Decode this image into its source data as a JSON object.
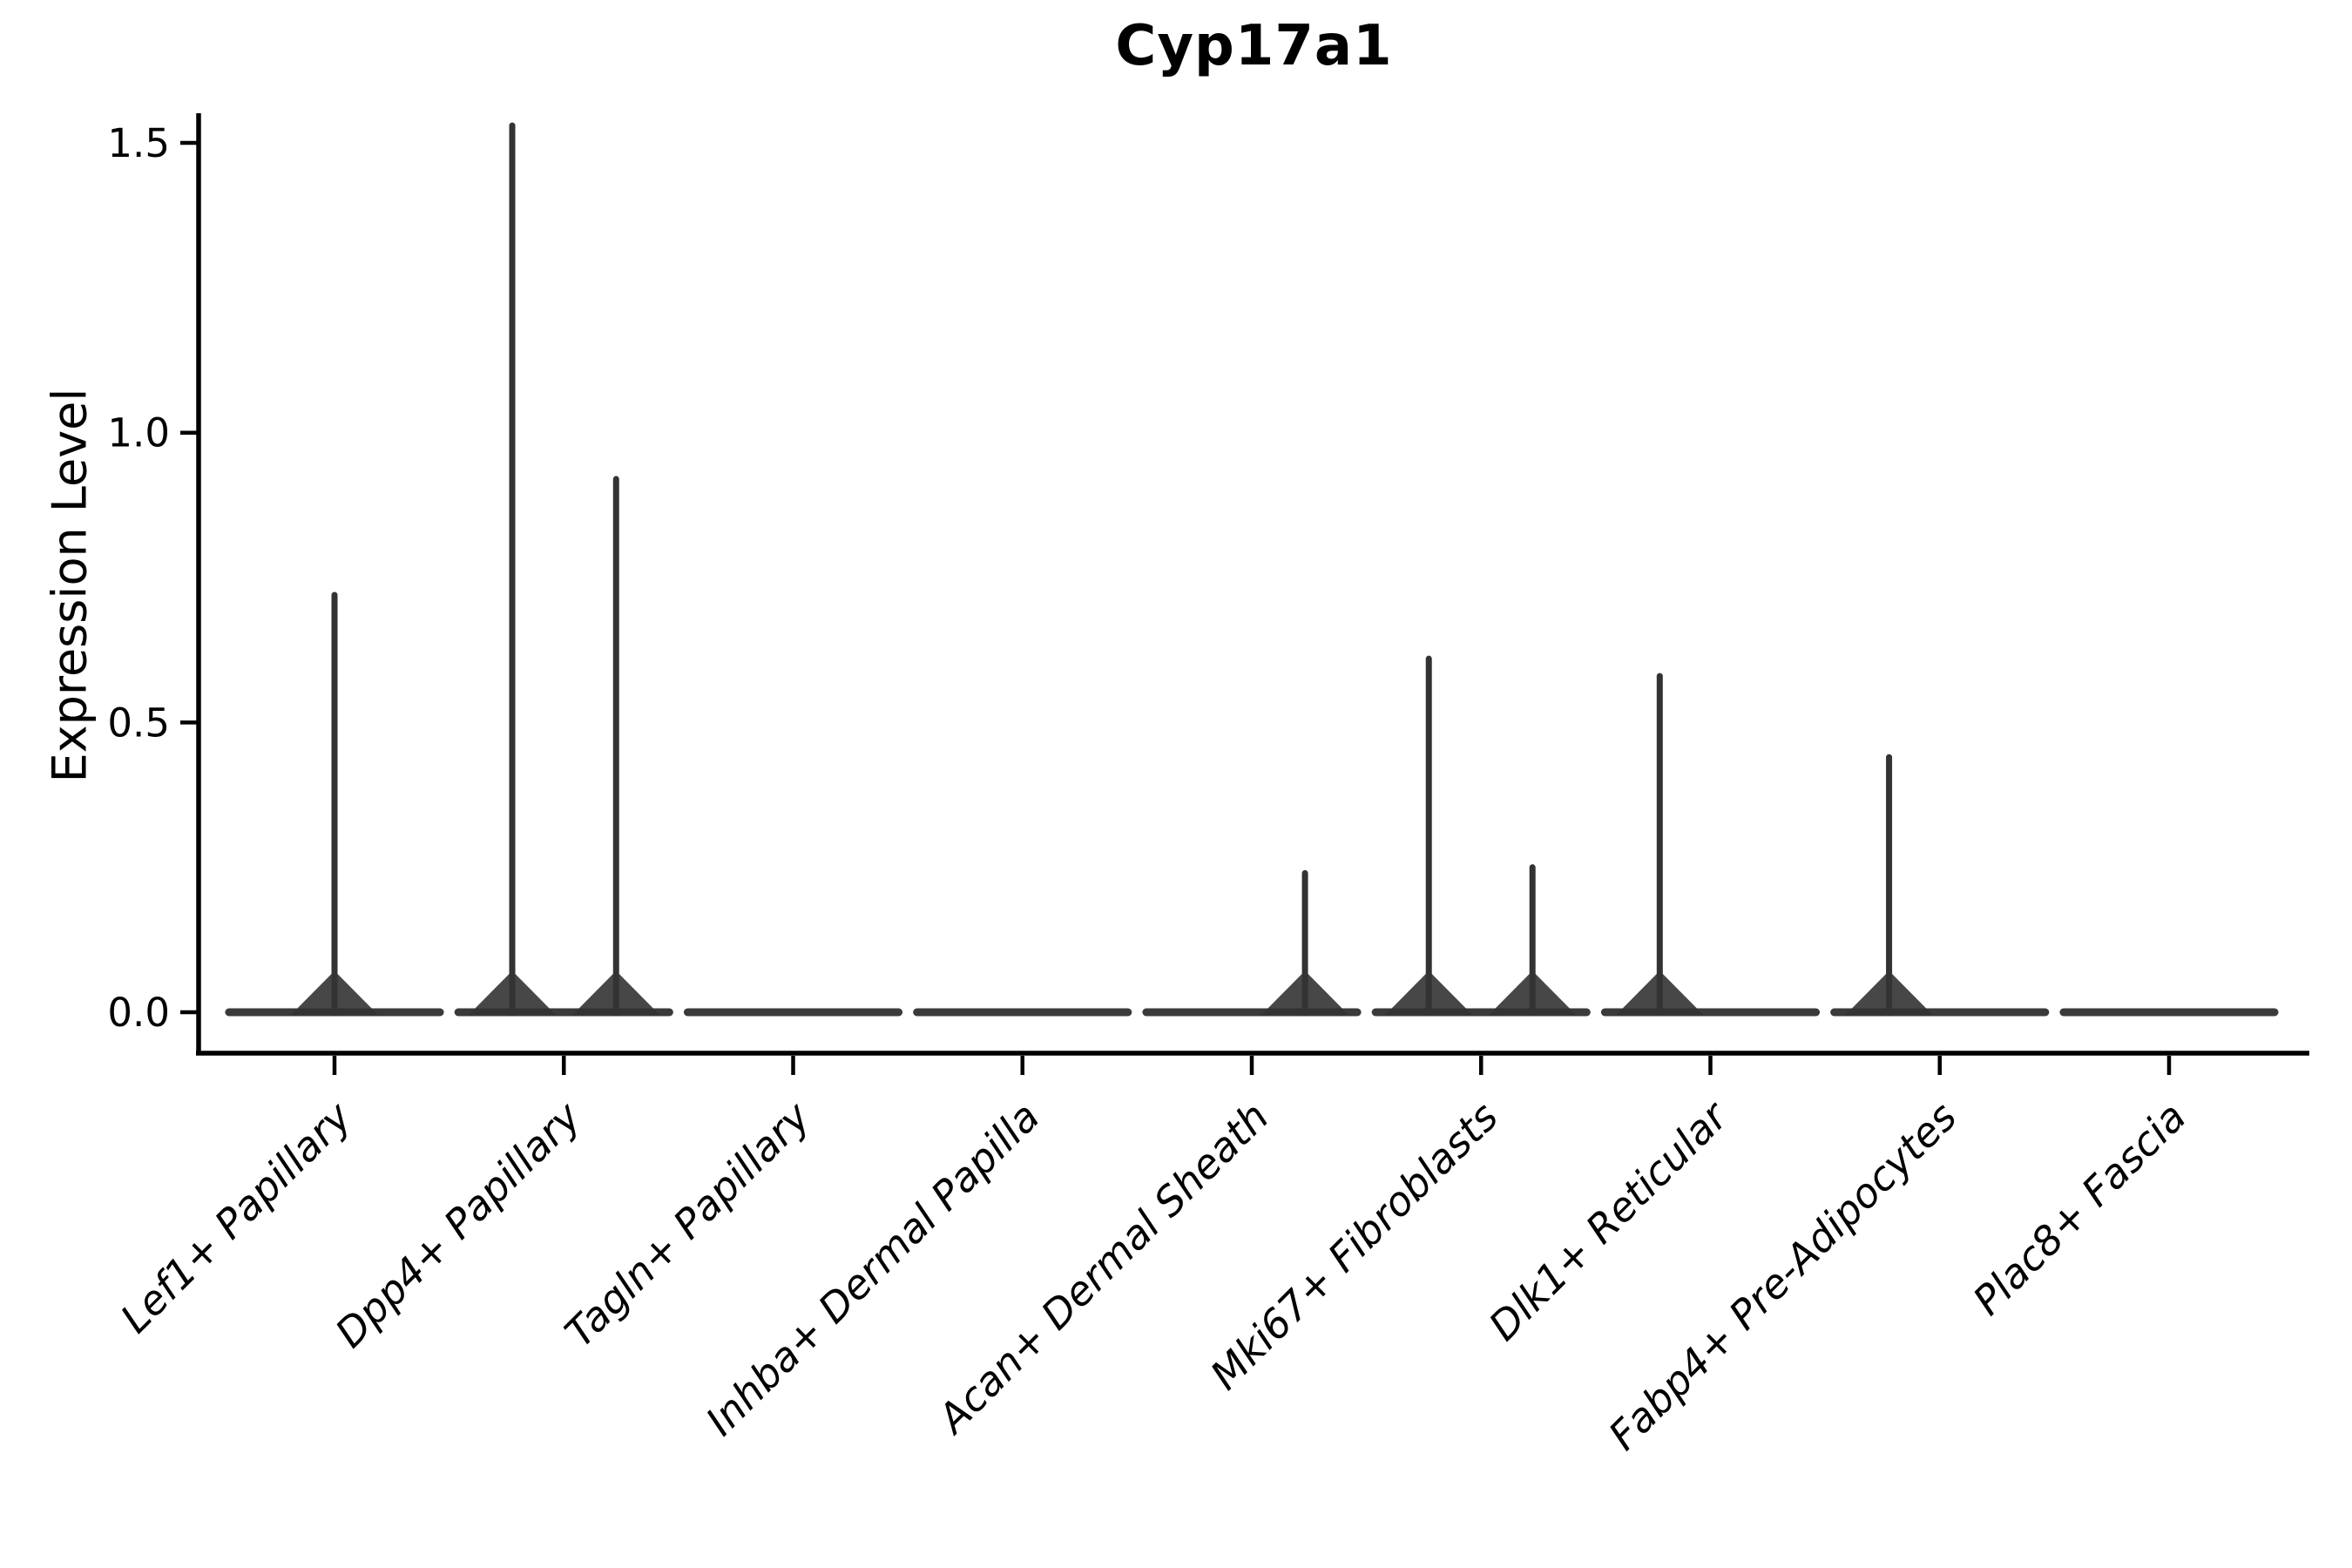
{
  "chart_data": {
    "type": "violin",
    "title": "Cyp17a1",
    "xlabel": "",
    "ylabel": "Expression Level",
    "ylim": [
      0,
      1.56
    ],
    "yticks": [
      0.0,
      0.5,
      1.0,
      1.5
    ],
    "ytick_labels": [
      "0.0",
      "0.5",
      "1.0",
      "1.5"
    ],
    "grid": false,
    "legend": null,
    "categories": [
      "Lef1+ Papillary",
      "Dpp4+ Papillary",
      "Tagln+ Papillary",
      "Inhba+ Dermal Papilla",
      "Acan+ Dermal Sheath",
      "Mki67+ Fibroblasts",
      "Dlk1+ Reticular",
      "Fabp4+ Pre-Adipocytes",
      "Plac8+ Fascia"
    ],
    "violins": [
      {
        "category": "Lef1+ Papillary",
        "baseline_value": 0.0,
        "body_halfwidth": 0.46,
        "spikes": [
          {
            "offset": 0.0,
            "value": 0.72
          }
        ]
      },
      {
        "category": "Dpp4+ Papillary",
        "baseline_value": 0.0,
        "body_halfwidth": 0.46,
        "spikes": [
          {
            "offset": -0.225,
            "value": 1.53
          },
          {
            "offset": 0.228,
            "value": 0.92
          }
        ]
      },
      {
        "category": "Tagln+ Papillary",
        "baseline_value": 0.0,
        "body_halfwidth": 0.46,
        "spikes": []
      },
      {
        "category": "Inhba+ Dermal Papilla",
        "baseline_value": 0.0,
        "body_halfwidth": 0.46,
        "spikes": []
      },
      {
        "category": "Acan+ Dermal Sheath",
        "baseline_value": 0.0,
        "body_halfwidth": 0.46,
        "spikes": [
          {
            "offset": 0.232,
            "value": 0.24
          }
        ]
      },
      {
        "category": "Mki67+ Fibroblasts",
        "baseline_value": 0.0,
        "body_halfwidth": 0.46,
        "spikes": [
          {
            "offset": -0.228,
            "value": 0.61
          },
          {
            "offset": 0.224,
            "value": 0.25
          }
        ]
      },
      {
        "category": "Dlk1+ Reticular",
        "baseline_value": 0.0,
        "body_halfwidth": 0.46,
        "spikes": [
          {
            "offset": -0.221,
            "value": 0.58
          }
        ]
      },
      {
        "category": "Fabp4+ Pre-Adipocytes",
        "baseline_value": 0.0,
        "body_halfwidth": 0.46,
        "spikes": [
          {
            "offset": -0.221,
            "value": 0.44
          }
        ]
      },
      {
        "category": "Plac8+ Fascia",
        "baseline_value": 0.0,
        "body_halfwidth": 0.46,
        "spikes": []
      }
    ],
    "colors": {
      "violin": "#333333",
      "violin_body": "#3a3a3a",
      "axis": "#000000",
      "text": "#000000",
      "background": "#ffffff"
    }
  }
}
